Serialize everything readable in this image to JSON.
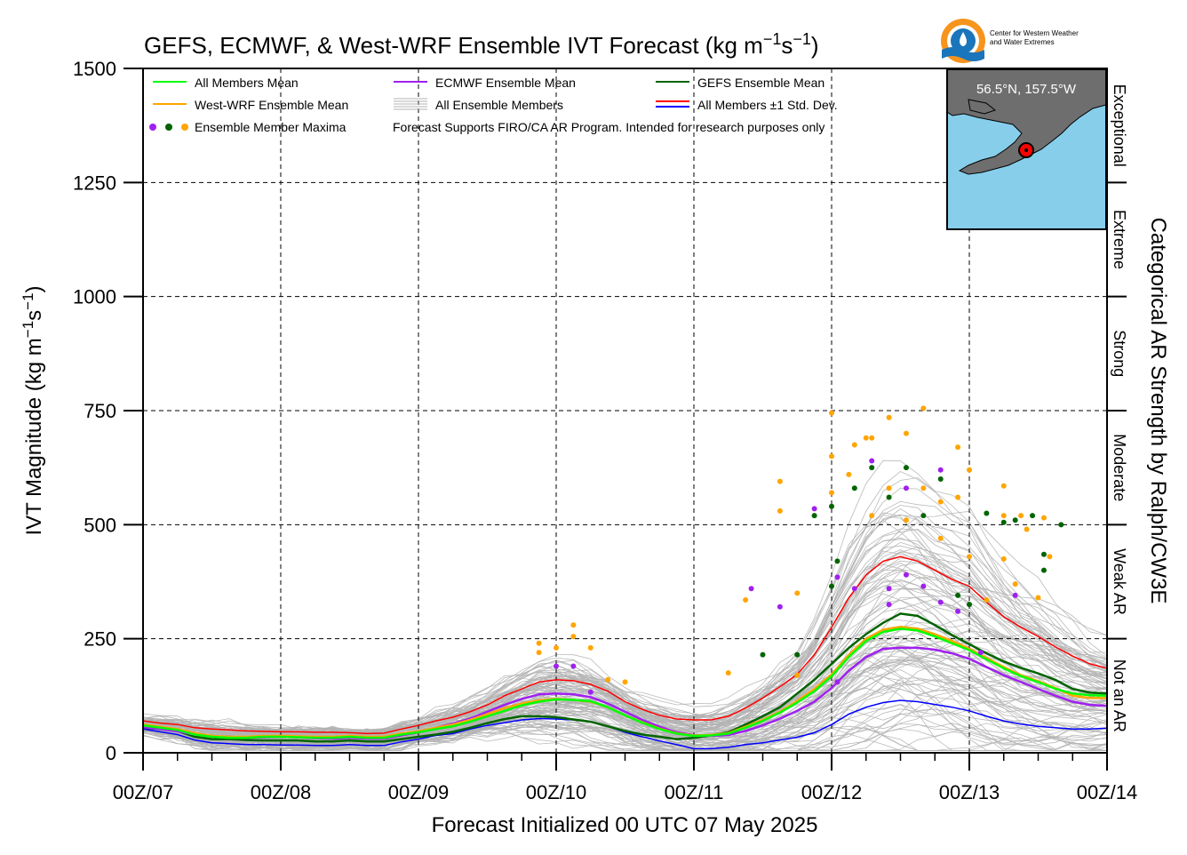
{
  "title": "GEFS, ECMWF, & West-WRF Ensemble IVT Forecast (kg m",
  "title_sup1": "−1",
  "title_mid": "s",
  "title_sup2": "−1",
  "title_end": ")",
  "logo_text_line1": "Center for Western Weather",
  "logo_text_line2": "and Water Extremes",
  "inset_label": "56.5°N, 157.5°W",
  "colors": {
    "all_mean": "#00ff00",
    "westwrf_mean": "#ffa500",
    "ecmwf_mean": "#a020f0",
    "gefs_mean": "#006400",
    "plus_std": "#ff0000",
    "minus_std": "#0000ff",
    "members": "#b3b3b3",
    "ocean": "#87ceeb",
    "land": "#6e6e6e"
  },
  "legend": {
    "all_mean": "All Members Mean",
    "westwrf_mean": "West-WRF Ensemble Mean",
    "maxima": "Ensemble Member Maxima",
    "ecmwf_mean": "ECMWF Ensemble Mean",
    "all_members": "All Ensemble Members",
    "note": "Forecast Supports FIRO/CA AR Program. Intended for research purposes only",
    "gefs_mean": "GEFS Ensemble Mean",
    "std": "All Members ±1 Std. Dev."
  },
  "categories": [
    "Exceptional",
    "Extreme",
    "Strong",
    "Moderate",
    "Weak AR",
    "Not an AR"
  ],
  "right_axis_label": "Categorical AR Strength by Ralph/CW3E",
  "chart_data": {
    "type": "line",
    "title": "GEFS, ECMWF, & West-WRF Ensemble IVT Forecast (kg m−1s−1)",
    "xlabel": "Forecast Initialized 00 UTC 07 May 2025",
    "ylabel": "IVT Magnitude (kg m−1s−1)",
    "ylim": [
      0,
      1500
    ],
    "xlim": [
      0,
      168
    ],
    "x_ticks": [
      0,
      24,
      48,
      72,
      96,
      120,
      144,
      168
    ],
    "x_ticklabels": [
      "00Z/07",
      "00Z/08",
      "00Z/09",
      "00Z/10",
      "00Z/11",
      "00Z/12",
      "00Z/13",
      "00Z/14"
    ],
    "y_ticks": [
      0,
      250,
      500,
      750,
      1000,
      1250,
      1500
    ],
    "grid": true,
    "legend_position": "top",
    "category_thresholds": [
      250,
      500,
      750,
      1000,
      1250
    ],
    "x": [
      0,
      3,
      6,
      9,
      12,
      15,
      18,
      21,
      24,
      27,
      30,
      33,
      36,
      39,
      42,
      45,
      48,
      51,
      54,
      57,
      60,
      63,
      66,
      69,
      72,
      75,
      78,
      81,
      84,
      87,
      90,
      93,
      96,
      99,
      102,
      105,
      108,
      111,
      114,
      117,
      120,
      123,
      126,
      129,
      132,
      135,
      138,
      141,
      144,
      147,
      150,
      153,
      156,
      159,
      162,
      165,
      168
    ],
    "series": [
      {
        "name": "All Members Mean",
        "key": "all_mean",
        "values": [
          60,
          55,
          50,
          40,
          35,
          33,
          33,
          35,
          35,
          34,
          33,
          33,
          35,
          33,
          33,
          40,
          45,
          52,
          58,
          68,
          80,
          92,
          104,
          112,
          117,
          116,
          113,
          100,
          82,
          66,
          52,
          42,
          37,
          38,
          42,
          55,
          70,
          88,
          110,
          135,
          168,
          210,
          245,
          265,
          272,
          268,
          255,
          240,
          225,
          205,
          185,
          168,
          155,
          140,
          130,
          126,
          125
        ]
      },
      {
        "name": "West-WRF Ensemble Mean",
        "key": "westwrf_mean",
        "values": [
          62,
          57,
          52,
          43,
          37,
          35,
          35,
          37,
          37,
          36,
          35,
          35,
          37,
          35,
          35,
          42,
          47,
          55,
          62,
          72,
          85,
          98,
          108,
          115,
          118,
          116,
          112,
          100,
          82,
          67,
          53,
          43,
          38,
          39,
          43,
          57,
          72,
          90,
          114,
          140,
          172,
          215,
          250,
          270,
          276,
          272,
          260,
          245,
          228,
          208,
          188,
          170,
          157,
          142,
          125,
          120,
          120
        ]
      },
      {
        "name": "ECMWF Ensemble Mean",
        "key": "ecmwf_mean",
        "values": [
          56,
          52,
          47,
          40,
          36,
          35,
          33,
          34,
          35,
          34,
          32,
          31,
          33,
          31,
          31,
          38,
          45,
          55,
          64,
          75,
          90,
          105,
          118,
          128,
          130,
          128,
          122,
          108,
          90,
          72,
          57,
          45,
          39,
          37,
          39,
          48,
          60,
          75,
          92,
          112,
          142,
          180,
          210,
          228,
          230,
          230,
          226,
          218,
          206,
          188,
          170,
          155,
          140,
          125,
          112,
          105,
          103
        ]
      },
      {
        "name": "GEFS Ensemble Mean",
        "key": "gefs_mean",
        "values": [
          55,
          52,
          48,
          35,
          30,
          30,
          28,
          27,
          27,
          27,
          25,
          25,
          27,
          25,
          25,
          30,
          35,
          40,
          46,
          55,
          65,
          74,
          80,
          80,
          78,
          73,
          68,
          58,
          48,
          40,
          35,
          30,
          33,
          38,
          45,
          62,
          80,
          100,
          130,
          160,
          195,
          230,
          260,
          285,
          305,
          300,
          280,
          258,
          238,
          218,
          200,
          186,
          174,
          160,
          140,
          132,
          130
        ]
      },
      {
        "name": "All Members +1 Std. Dev.",
        "key": "plus_std",
        "values": [
          70,
          65,
          62,
          55,
          52,
          50,
          48,
          47,
          46,
          46,
          45,
          45,
          44,
          42,
          43,
          52,
          60,
          70,
          78,
          90,
          105,
          125,
          140,
          155,
          160,
          158,
          150,
          135,
          112,
          95,
          82,
          74,
          72,
          72,
          80,
          98,
          120,
          145,
          172,
          215,
          275,
          340,
          390,
          420,
          430,
          420,
          400,
          380,
          365,
          330,
          298,
          275,
          255,
          232,
          212,
          195,
          185
        ]
      },
      {
        "name": "All Members −1 Std. Dev.",
        "key": "minus_std",
        "values": [
          52,
          46,
          40,
          28,
          22,
          20,
          18,
          18,
          17,
          17,
          16,
          16,
          18,
          16,
          16,
          24,
          30,
          38,
          42,
          52,
          60,
          66,
          72,
          75,
          74,
          72,
          68,
          58,
          45,
          35,
          26,
          18,
          9,
          9,
          12,
          18,
          22,
          28,
          34,
          44,
          62,
          85,
          100,
          110,
          115,
          112,
          106,
          100,
          92,
          80,
          70,
          63,
          58,
          55,
          52,
          52,
          54
        ]
      }
    ],
    "member_maxima": {
      "purple": [
        [
          72,
          190
        ],
        [
          75,
          190
        ],
        [
          78,
          133
        ],
        [
          106,
          360
        ],
        [
          111,
          320
        ],
        [
          117,
          535
        ],
        [
          121,
          385
        ],
        [
          121,
          155
        ],
        [
          124,
          360
        ],
        [
          127,
          640
        ],
        [
          130,
          360
        ],
        [
          130,
          325
        ],
        [
          133,
          580
        ],
        [
          133,
          390
        ],
        [
          136,
          365
        ],
        [
          139,
          330
        ],
        [
          139,
          620
        ],
        [
          142,
          310
        ],
        [
          146,
          220
        ],
        [
          152,
          345
        ]
      ],
      "green": [
        [
          108,
          215
        ],
        [
          114,
          215
        ],
        [
          117,
          520
        ],
        [
          120,
          365
        ],
        [
          120,
          540
        ],
        [
          121,
          420
        ],
        [
          124,
          580
        ],
        [
          127,
          625
        ],
        [
          130,
          560
        ],
        [
          133,
          625
        ],
        [
          136,
          520
        ],
        [
          139,
          600
        ],
        [
          142,
          345
        ],
        [
          144,
          325
        ],
        [
          147,
          525
        ],
        [
          150,
          505
        ],
        [
          152,
          510
        ],
        [
          155,
          520
        ],
        [
          157,
          435
        ],
        [
          157,
          400
        ],
        [
          160,
          500
        ]
      ],
      "orange": [
        [
          69,
          240
        ],
        [
          69,
          220
        ],
        [
          72,
          230
        ],
        [
          75,
          280
        ],
        [
          75,
          255
        ],
        [
          78,
          230
        ],
        [
          81,
          160
        ],
        [
          84,
          155
        ],
        [
          102,
          175
        ],
        [
          105,
          335
        ],
        [
          111,
          530
        ],
        [
          111,
          595
        ],
        [
          114,
          170
        ],
        [
          114,
          350
        ],
        [
          120,
          745
        ],
        [
          120,
          650
        ],
        [
          120,
          570
        ],
        [
          123,
          610
        ],
        [
          124,
          675
        ],
        [
          126,
          690
        ],
        [
          127,
          690
        ],
        [
          127,
          520
        ],
        [
          130,
          735
        ],
        [
          130,
          580
        ],
        [
          133,
          700
        ],
        [
          133,
          510
        ],
        [
          136,
          755
        ],
        [
          136,
          580
        ],
        [
          139,
          550
        ],
        [
          139,
          470
        ],
        [
          142,
          670
        ],
        [
          142,
          560
        ],
        [
          144,
          620
        ],
        [
          144,
          430
        ],
        [
          147,
          335
        ],
        [
          150,
          585
        ],
        [
          150,
          520
        ],
        [
          150,
          425
        ],
        [
          152,
          370
        ],
        [
          153,
          520
        ],
        [
          154,
          490
        ],
        [
          156,
          340
        ],
        [
          157,
          515
        ],
        [
          158,
          430
        ]
      ]
    }
  }
}
